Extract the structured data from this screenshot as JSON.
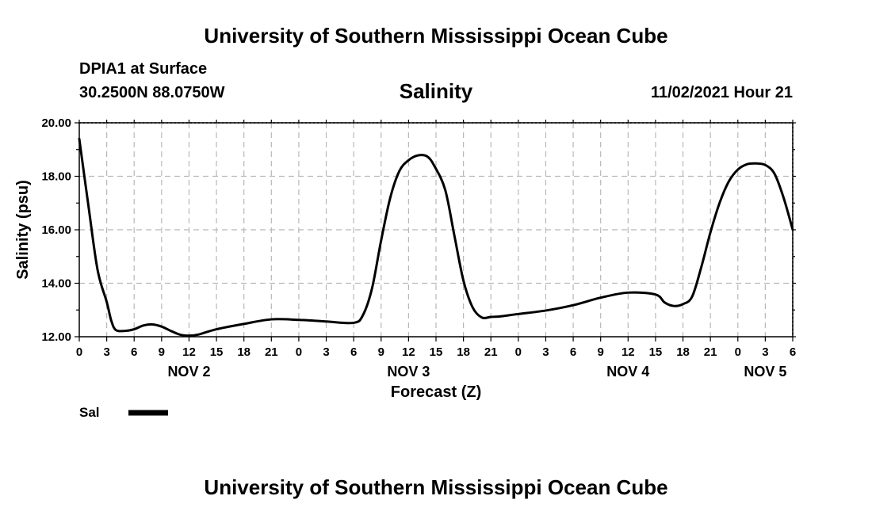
{
  "page": {
    "top_title": "University of Southern Mississippi Ocean Cube",
    "bottom_title": "University of Southern Mississippi Ocean Cube",
    "station": "DPIA1 at Surface",
    "coords": "30.2500N  88.0750W",
    "datetime": "11/02/2021 Hour 21"
  },
  "chart_data": {
    "type": "line",
    "title": "Salinity",
    "xlabel": "Forecast (Z)",
    "ylabel": "Salinity (psu)",
    "ylim": [
      12,
      20
    ],
    "yticks": [
      "12.00",
      "14.00",
      "16.00",
      "18.00",
      "20.00"
    ],
    "xlim": [
      0,
      78
    ],
    "xtick_hours": [
      0,
      3,
      6,
      9,
      12,
      15,
      18,
      21,
      24,
      27,
      30,
      33,
      36,
      39,
      42,
      45,
      48,
      51,
      54,
      57,
      60,
      63,
      66,
      69,
      72,
      75,
      78
    ],
    "xtick_labels": [
      "0",
      "3",
      "6",
      "9",
      "12",
      "15",
      "18",
      "21",
      "0",
      "3",
      "6",
      "9",
      "12",
      "15",
      "18",
      "21",
      "0",
      "3",
      "6",
      "9",
      "12",
      "15",
      "18",
      "21",
      "0",
      "3",
      "6"
    ],
    "day_labels": [
      {
        "text": "NOV 2",
        "hour": 12
      },
      {
        "text": "NOV 3",
        "hour": 36
      },
      {
        "text": "NOV 4",
        "hour": 60
      },
      {
        "text": "NOV 5",
        "hour": 75
      }
    ],
    "grid": true,
    "legend": [
      {
        "name": "Sal",
        "color": "#000000"
      }
    ],
    "series": [
      {
        "name": "Sal",
        "x": [
          0,
          1,
          2,
          3,
          3.5,
          4,
          5,
          6,
          7,
          8,
          9,
          10,
          11,
          12,
          13,
          15,
          18,
          21,
          24,
          27,
          30,
          31,
          32,
          33,
          34,
          35,
          36,
          37,
          38,
          38.8,
          40,
          41,
          42,
          43,
          44,
          45,
          46,
          46.5,
          48,
          51,
          54,
          57,
          60,
          63,
          64,
          65,
          66,
          67,
          68,
          69,
          70,
          71,
          72,
          73,
          74,
          75,
          76,
          77,
          78
        ],
        "y": [
          19.4,
          16.9,
          14.5,
          13.3,
          12.6,
          12.25,
          12.22,
          12.28,
          12.42,
          12.46,
          12.38,
          12.22,
          12.08,
          12.04,
          12.08,
          12.28,
          12.48,
          12.65,
          12.63,
          12.57,
          12.52,
          12.8,
          13.8,
          15.6,
          17.2,
          18.2,
          18.6,
          18.78,
          18.75,
          18.4,
          17.5,
          15.8,
          14.1,
          13.1,
          12.72,
          12.74,
          12.76,
          12.78,
          12.85,
          12.98,
          13.18,
          13.46,
          13.65,
          13.58,
          13.28,
          13.15,
          13.22,
          13.5,
          14.6,
          15.9,
          17.0,
          17.8,
          18.25,
          18.45,
          18.48,
          18.42,
          18.1,
          17.2,
          16.0
        ]
      }
    ]
  }
}
